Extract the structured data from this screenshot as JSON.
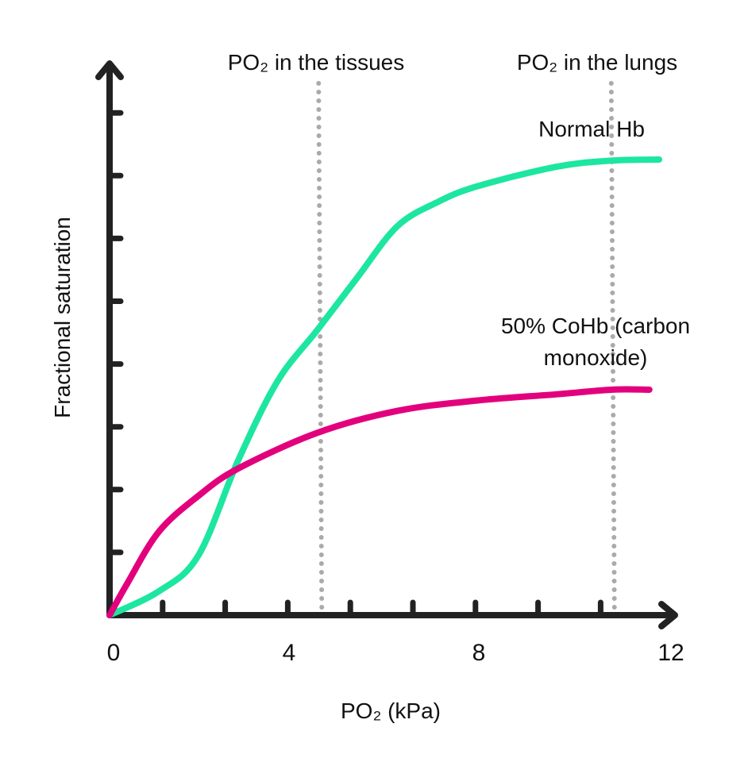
{
  "chart_data": {
    "type": "line",
    "title": "",
    "xlabel": "PO₂ (kPa)",
    "ylabel": "Fractional saturation",
    "xlim": [
      0,
      12
    ],
    "ylim": [
      0,
      1
    ],
    "x_tick_labels": [
      "0",
      "4",
      "8",
      "12"
    ],
    "x_tick_values": [
      0,
      4,
      8,
      12
    ],
    "grid": false,
    "colors": {
      "normal": "#1de6a0",
      "coHb": "#e3007d",
      "reference": "#aaaaaa",
      "axis": "#222222"
    },
    "series": [
      {
        "name": "Normal Hb",
        "label_lines": [
          "Normal Hb"
        ],
        "color": "#1de6a0",
        "x": [
          0,
          1.06,
          1.91,
          2.77,
          3.62,
          4.48,
          5.33,
          6.19,
          7.04,
          7.9,
          9.61,
          10.8,
          11.83
        ],
        "y": [
          0,
          0.046,
          0.115,
          0.299,
          0.452,
          0.551,
          0.651,
          0.75,
          0.796,
          0.827,
          0.865,
          0.877,
          0.879
        ]
      },
      {
        "name": "50% CoHb (carbon monoxide)",
        "label_lines": [
          "50% CoHb (carbon",
          "monoxide)"
        ],
        "color": "#e3007d",
        "x": [
          0,
          0.38,
          1.06,
          1.91,
          2.77,
          4.48,
          6.19,
          7.9,
          9.61,
          10.8,
          11.62
        ],
        "y": [
          0,
          0.061,
          0.161,
          0.23,
          0.283,
          0.352,
          0.394,
          0.414,
          0.426,
          0.435,
          0.435
        ]
      }
    ],
    "reference_lines": [
      {
        "label": "PO₂ in the tissues",
        "x": 4.5
      },
      {
        "label": "PO₂ in the lungs",
        "x": 10.8
      }
    ]
  }
}
